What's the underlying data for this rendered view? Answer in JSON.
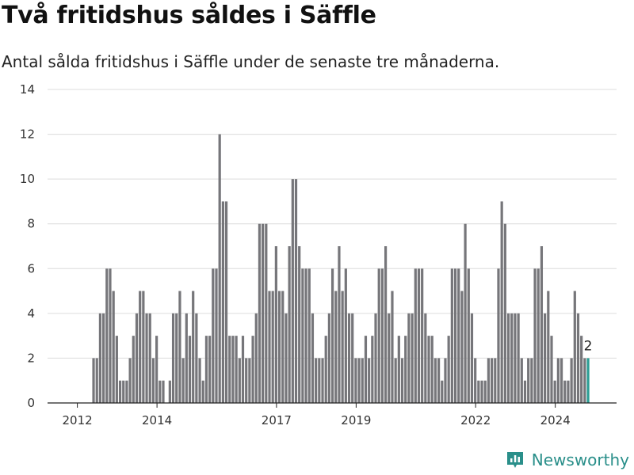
{
  "header": {
    "title": "Två fritidshus såldes i Säffle",
    "subtitle": "Antal sålda fritidshus i Säffle under de senaste tre månaderna."
  },
  "brand": {
    "name": "Newsworthy",
    "color": "#2a8f8a"
  },
  "chart_data": {
    "type": "bar",
    "title": "Två fritidshus såldes i Säffle",
    "subtitle": "Antal sålda fritidshus i Säffle under de senaste tre månaderna.",
    "xlabel": "",
    "ylabel": "",
    "ylim": [
      0,
      14
    ],
    "yticks": [
      0,
      2,
      4,
      6,
      8,
      10,
      12,
      14
    ],
    "xticks": [
      "2012",
      "2014",
      "2017",
      "2019",
      "2022",
      "2024"
    ],
    "grid": true,
    "legend": "none",
    "bar_color": "#76767a",
    "highlight_color": "#2a9d94",
    "start": "2012-01",
    "values": [
      0,
      0,
      0,
      0,
      0,
      0,
      0,
      0,
      0,
      0,
      0,
      0,
      0,
      2,
      2,
      4,
      4,
      6,
      6,
      5,
      3,
      1,
      1,
      1,
      2,
      3,
      4,
      5,
      5,
      4,
      4,
      2,
      3,
      1,
      1,
      0,
      1,
      4,
      4,
      5,
      2,
      4,
      3,
      5,
      4,
      2,
      1,
      3,
      3,
      6,
      6,
      12,
      9,
      9,
      3,
      3,
      3,
      2,
      3,
      2,
      2,
      3,
      4,
      8,
      8,
      8,
      5,
      5,
      7,
      5,
      5,
      4,
      7,
      10,
      10,
      7,
      6,
      6,
      6,
      4,
      2,
      2,
      2,
      3,
      4,
      6,
      5,
      7,
      5,
      6,
      4,
      4,
      2,
      2,
      2,
      3,
      2,
      3,
      4,
      6,
      6,
      7,
      4,
      5,
      2,
      3,
      2,
      3,
      4,
      4,
      6,
      6,
      6,
      4,
      3,
      3,
      2,
      2,
      1,
      2,
      3,
      6,
      6,
      6,
      5,
      8,
      6,
      4,
      2,
      1,
      1,
      1,
      2,
      2,
      2,
      6,
      9,
      8,
      4,
      4,
      4,
      4,
      2,
      1,
      2,
      2,
      6,
      6,
      7,
      4,
      5,
      3,
      1,
      2,
      2,
      1,
      1,
      2,
      5,
      4,
      3,
      2,
      2
    ],
    "highlight_last": 1,
    "annotation": {
      "text": "2",
      "value": 2,
      "position": "last"
    }
  }
}
